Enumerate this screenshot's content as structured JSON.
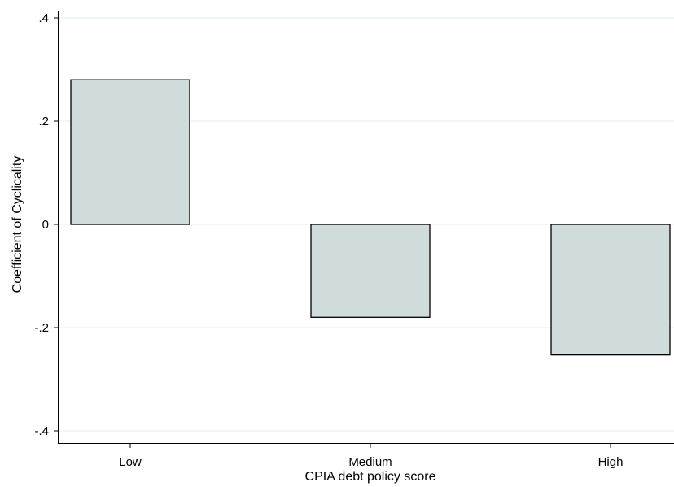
{
  "chart_data": {
    "type": "bar",
    "categories": [
      "Low",
      "Medium",
      "High"
    ],
    "values": [
      0.28,
      -0.18,
      -0.253
    ],
    "xlabel": "CPIA debt policy score",
    "ylabel": "Coefficient of Cyclicality",
    "ylim": [
      -0.43,
      0.42
    ],
    "yticks": [
      0.4,
      0.2,
      0,
      -0.2,
      -0.4
    ],
    "ytick_labels": [
      ".4",
      ".2",
      "0",
      "-.2",
      "-.4"
    ],
    "grid": true,
    "legend": "none",
    "colors": {
      "bar_fill": "#cfdcdb",
      "bar_edge": "#000000",
      "grid": "#e3eeee"
    }
  }
}
